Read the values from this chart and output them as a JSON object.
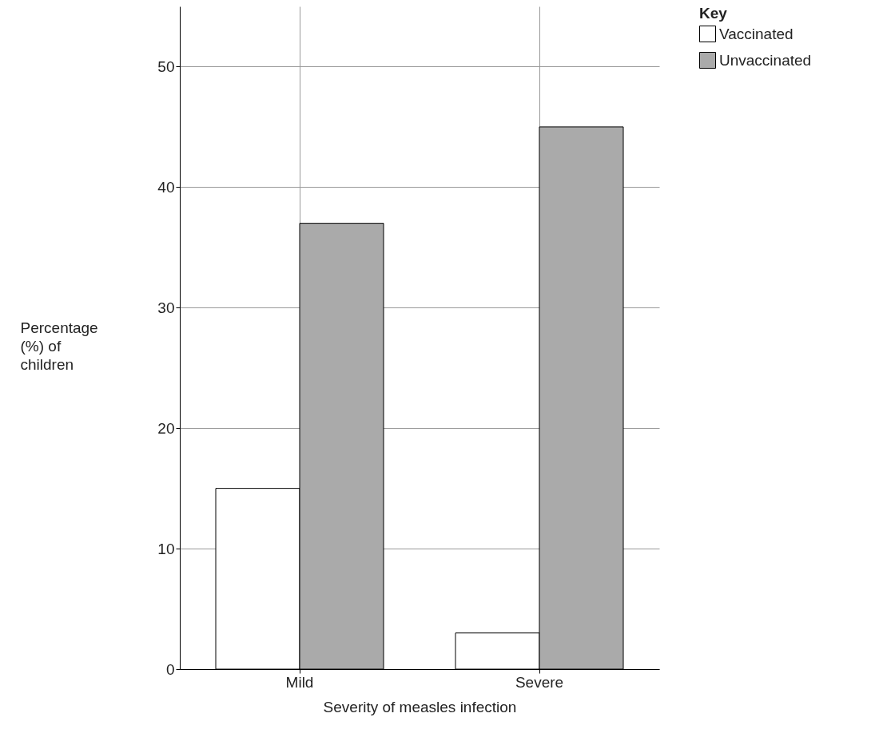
{
  "chart_data": {
    "type": "bar",
    "xlabel": "Severity of measles infection",
    "ylabel": "Percentage (%) of children",
    "legend_title": "Key",
    "categories": [
      "Mild",
      "Severe"
    ],
    "series": [
      {
        "name": "Vaccinated",
        "color": "#ffffff",
        "values": [
          15,
          3
        ]
      },
      {
        "name": "Unvaccinated",
        "color": "#aaaaaa",
        "values": [
          37,
          45
        ]
      }
    ],
    "ylim": [
      0,
      55
    ],
    "yticks": [
      0,
      10,
      20,
      30,
      40,
      50
    ],
    "grid": true,
    "legend": "top right"
  }
}
